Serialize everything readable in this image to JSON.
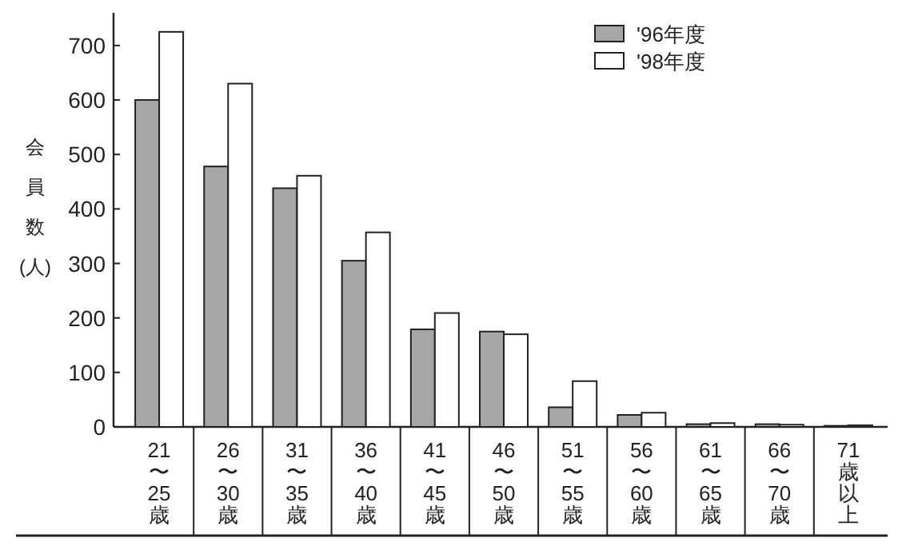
{
  "chart_data": {
    "type": "bar",
    "ylabel": "会員数(人)",
    "categories": [
      "21〜25歳",
      "26〜30歳",
      "31〜35歳",
      "36〜40歳",
      "41〜45歳",
      "46〜50歳",
      "51〜55歳",
      "56〜60歳",
      "61〜65歳",
      "66〜70歳",
      "71歳以上"
    ],
    "series": [
      {
        "name": "'96年度",
        "color": "#a6a6a6",
        "values": [
          600,
          478,
          438,
          305,
          179,
          175,
          36,
          22,
          5,
          5,
          2
        ]
      },
      {
        "name": "'98年度",
        "color": "#ffffff",
        "values": [
          725,
          630,
          461,
          357,
          209,
          170,
          84,
          26,
          7,
          4,
          3
        ]
      }
    ],
    "ylim": [
      0,
      760
    ],
    "yticks": [
      0,
      100,
      200,
      300,
      400,
      500,
      600,
      700
    ],
    "grid": false,
    "legend": "top right"
  }
}
